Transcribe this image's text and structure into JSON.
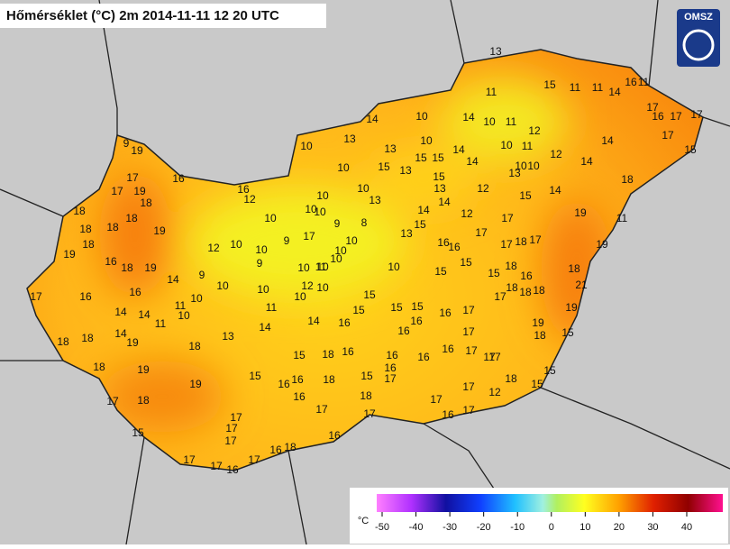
{
  "header": {
    "title": "Hőmérséklet (°C) 2m 2014-11-11 12 20 UTC",
    "logo": "OMSZ"
  },
  "colorbar": {
    "unit": "°C",
    "ticks": [
      -50,
      -40,
      -30,
      -20,
      -10,
      0,
      10,
      20,
      30,
      40
    ]
  },
  "stations": [
    9,
    19,
    17,
    17,
    19,
    16,
    16,
    12,
    10,
    13,
    13,
    10,
    10,
    14,
    13,
    15,
    11,
    11,
    14,
    16,
    11,
    17,
    16,
    17,
    17,
    11,
    14,
    10,
    11,
    12,
    10,
    11,
    10,
    10,
    12,
    14,
    14,
    17,
    15,
    18,
    11,
    19,
    19,
    18,
    21,
    19,
    19,
    18,
    15,
    15,
    15,
    18,
    12,
    17,
    17,
    17,
    16,
    17,
    17,
    15,
    18,
    17,
    16,
    17,
    16,
    18,
    16,
    17,
    16,
    17,
    17,
    17,
    17,
    17,
    15,
    17,
    18,
    19,
    18,
    19,
    18,
    15,
    16,
    16,
    15,
    18,
    16,
    18,
    16,
    16,
    16,
    16,
    17,
    17,
    17,
    16,
    17,
    16,
    15,
    15,
    16,
    15,
    15,
    16,
    14,
    10,
    14,
    13,
    10,
    10,
    11,
    11,
    19,
    14,
    14,
    14,
    18,
    18,
    17,
    16,
    16,
    14,
    9,
    10,
    10,
    11,
    18,
    19,
    16,
    19,
    18,
    18,
    18,
    19,
    18,
    18,
    18,
    12,
    10,
    9,
    10,
    9,
    10,
    10,
    10,
    10,
    10,
    10,
    9,
    8,
    10,
    10,
    10,
    10,
    10,
    13,
    15,
    13,
    15,
    15,
    14,
    14,
    15,
    13,
    14,
    14,
    12,
    12,
    13,
    15,
    14,
    13,
    15,
    16,
    16,
    17,
    17,
    18,
    17,
    17,
    18,
    16,
    15,
    15,
    15,
    10,
    12,
    10,
    11,
    17,
    18,
    17,
    18,
    18
  ]
}
